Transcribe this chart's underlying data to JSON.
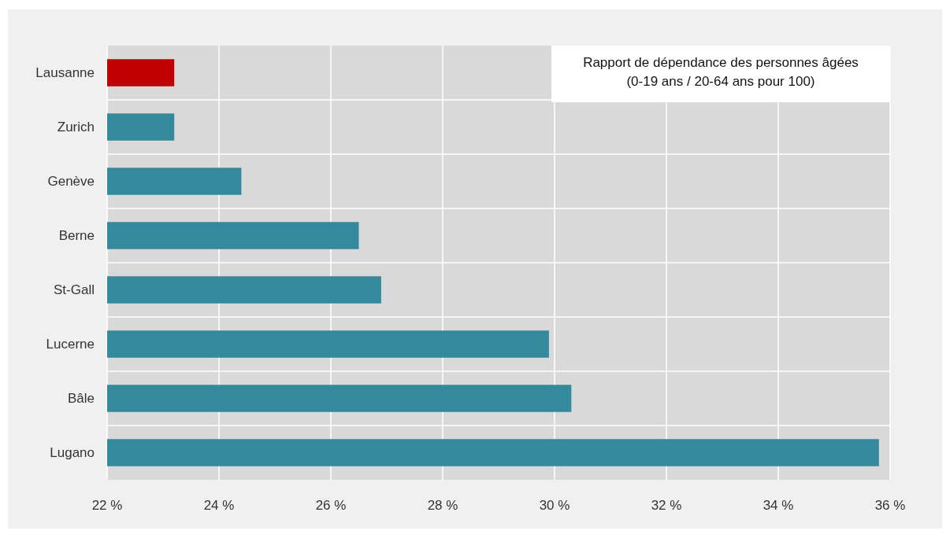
{
  "chart_data": {
    "type": "bar",
    "orientation": "horizontal",
    "title": "Rapport de dépendance des personnes âgées",
    "subtitle": "(0-19 ans / 20-64 ans pour 100)",
    "categories": [
      "Lausanne",
      "Zurich",
      "Genève",
      "Berne",
      "St-Gall",
      "Lucerne",
      "Bâle",
      "Lugano"
    ],
    "values": [
      23.2,
      23.2,
      24.4,
      26.5,
      26.9,
      29.9,
      30.3,
      35.8
    ],
    "colors": [
      "#c00000",
      "#348a9c",
      "#348a9c",
      "#348a9c",
      "#348a9c",
      "#348a9c",
      "#348a9c",
      "#348a9c"
    ],
    "xlim": [
      22,
      36
    ],
    "xticks": [
      {
        "value": 22,
        "label": "22 %"
      },
      {
        "value": 24,
        "label": "24 %"
      },
      {
        "value": 26,
        "label": "26 %"
      },
      {
        "value": 28,
        "label": "28 %"
      },
      {
        "value": 30,
        "label": "30 %"
      },
      {
        "value": 32,
        "label": "32 %"
      },
      {
        "value": 34,
        "label": "34 %"
      },
      {
        "value": 36,
        "label": "36 %"
      }
    ],
    "grid": true
  }
}
